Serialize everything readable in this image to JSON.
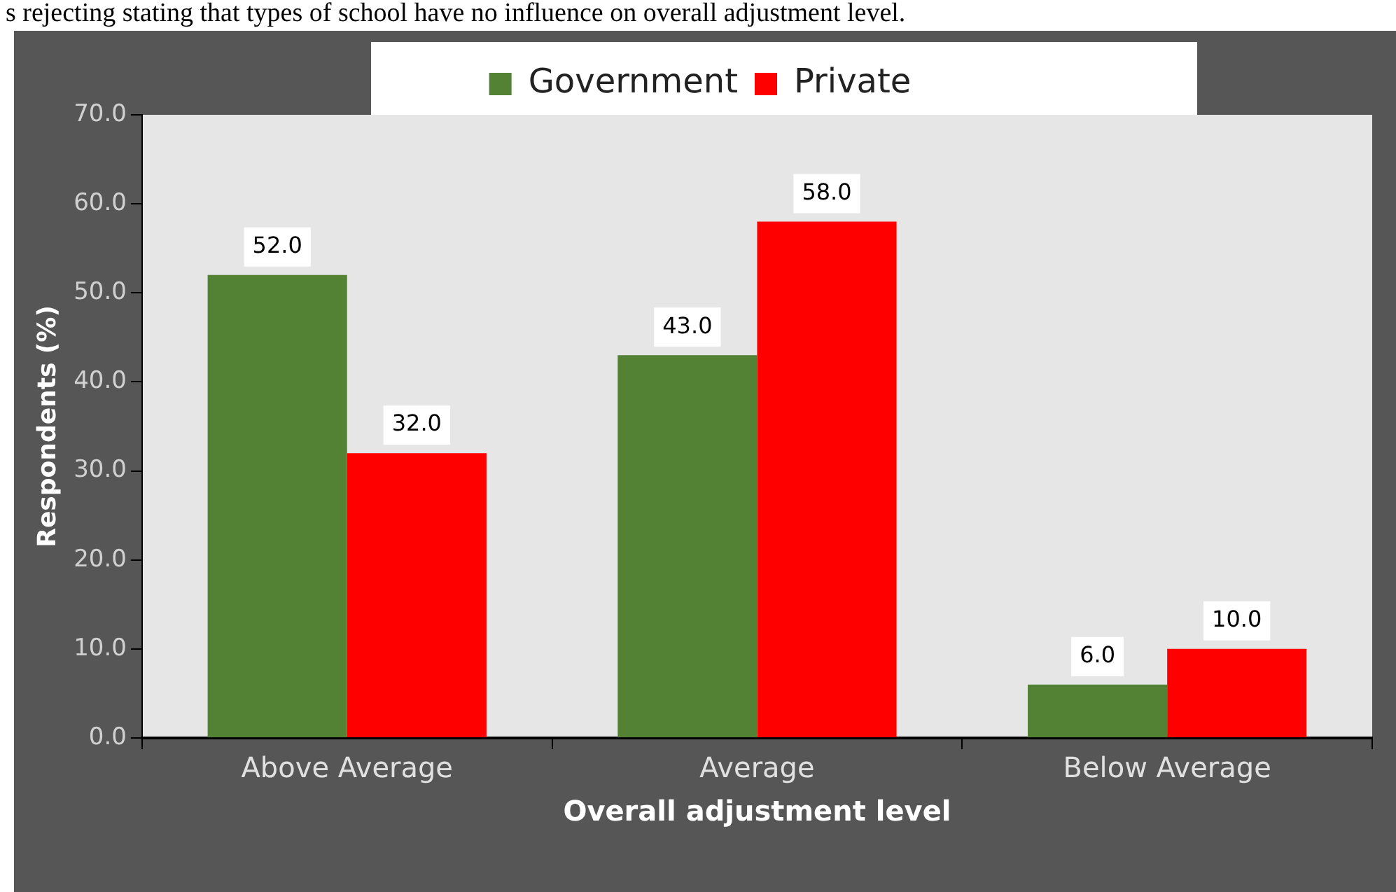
{
  "chart_data": {
    "type": "bar",
    "xlabel": "Overall adjustment level",
    "ylabel": "Respondents (%)",
    "annotations": [
      "s rejecting stating that types of school have no influence on overall adjustment level."
    ],
    "categories": [
      "Above Average",
      "Average",
      "Below Average"
    ],
    "series": [
      {
        "name": "Government",
        "color": "#548235",
        "values": [
          52,
          43,
          6
        ],
        "value_labels": [
          "52.0",
          "43.0",
          "6.0"
        ]
      },
      {
        "name": "Private",
        "color": "#ff0000",
        "values": [
          32,
          58,
          10
        ],
        "value_labels": [
          "32.0",
          "58.0",
          "10.0"
        ]
      }
    ],
    "ylim": [
      0,
      70
    ],
    "yticks": [
      {
        "value": 0,
        "label": "0.0"
      },
      {
        "value": 10,
        "label": "10.0"
      },
      {
        "value": 20,
        "label": "20.0"
      },
      {
        "value": 30,
        "label": "30.0"
      },
      {
        "value": 40,
        "label": "40.0"
      },
      {
        "value": 50,
        "label": "50.0"
      },
      {
        "value": 60,
        "label": "60.0"
      },
      {
        "value": 70,
        "label": "70.0"
      }
    ],
    "legend": "top",
    "grid": false
  }
}
